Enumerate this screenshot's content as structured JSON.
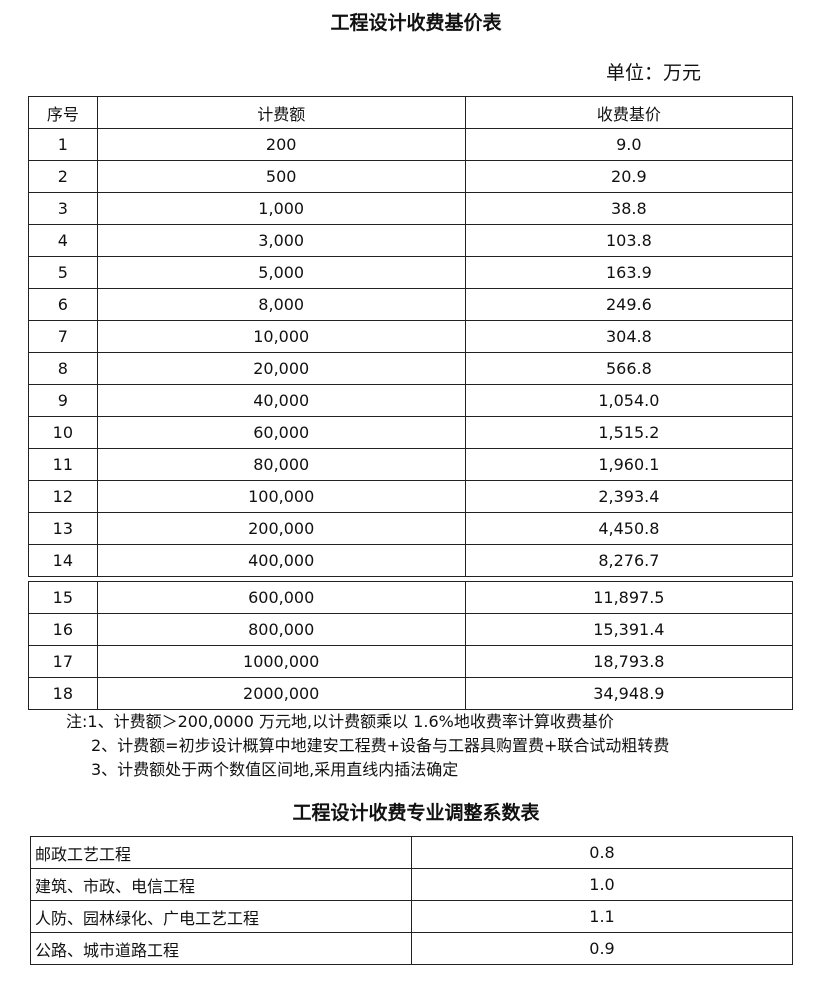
{
  "title": "工程设计收费基价表",
  "unit": "单位：万元",
  "table1": {
    "headers": [
      "序号",
      "计费额",
      "收费基价"
    ],
    "rows": [
      [
        "1",
        "200",
        "9.0"
      ],
      [
        "2",
        "500",
        "20.9"
      ],
      [
        "3",
        "1,000",
        "38.8"
      ],
      [
        "4",
        "3,000",
        "103.8"
      ],
      [
        "5",
        "5,000",
        "163.9"
      ],
      [
        "6",
        "8,000",
        "249.6"
      ],
      [
        "7",
        "10,000",
        "304.8"
      ],
      [
        "8",
        "20,000",
        "566.8"
      ],
      [
        "9",
        "40,000",
        "1,054.0"
      ],
      [
        "10",
        "60,000",
        "1,515.2"
      ],
      [
        "11",
        "80,000",
        "1,960.1"
      ],
      [
        "12",
        "100,000",
        "2,393.4"
      ],
      [
        "13",
        "200,000",
        "4,450.8"
      ],
      [
        "14",
        "400,000",
        "8,276.7"
      ],
      [
        "15",
        "600,000",
        "11,897.5"
      ],
      [
        "16",
        "800,000",
        "15,391.4"
      ],
      [
        "17",
        "1000,000",
        "18,793.8"
      ],
      [
        "18",
        "2000,000",
        "34,948.9"
      ]
    ]
  },
  "notes": [
    "注:1、计费额＞200,0000 万元地,以计费额乘以 1.6%地收费率计算收费基价",
    "2、计费额=初步设计概算中地建安工程费+设备与工器具购置费+联合试动粗转费",
    "3、计费额处于两个数值区间地,采用直线内插法确定"
  ],
  "title2": "工程设计收费专业调整系数表",
  "table2": {
    "rows": [
      [
        "邮政工艺工程",
        "0.8"
      ],
      [
        "建筑、市政、电信工程",
        "1.0"
      ],
      [
        "人防、园林绿化、广电工艺工程",
        "1.1"
      ],
      [
        "公路、城市道路工程",
        "0.9"
      ]
    ]
  }
}
